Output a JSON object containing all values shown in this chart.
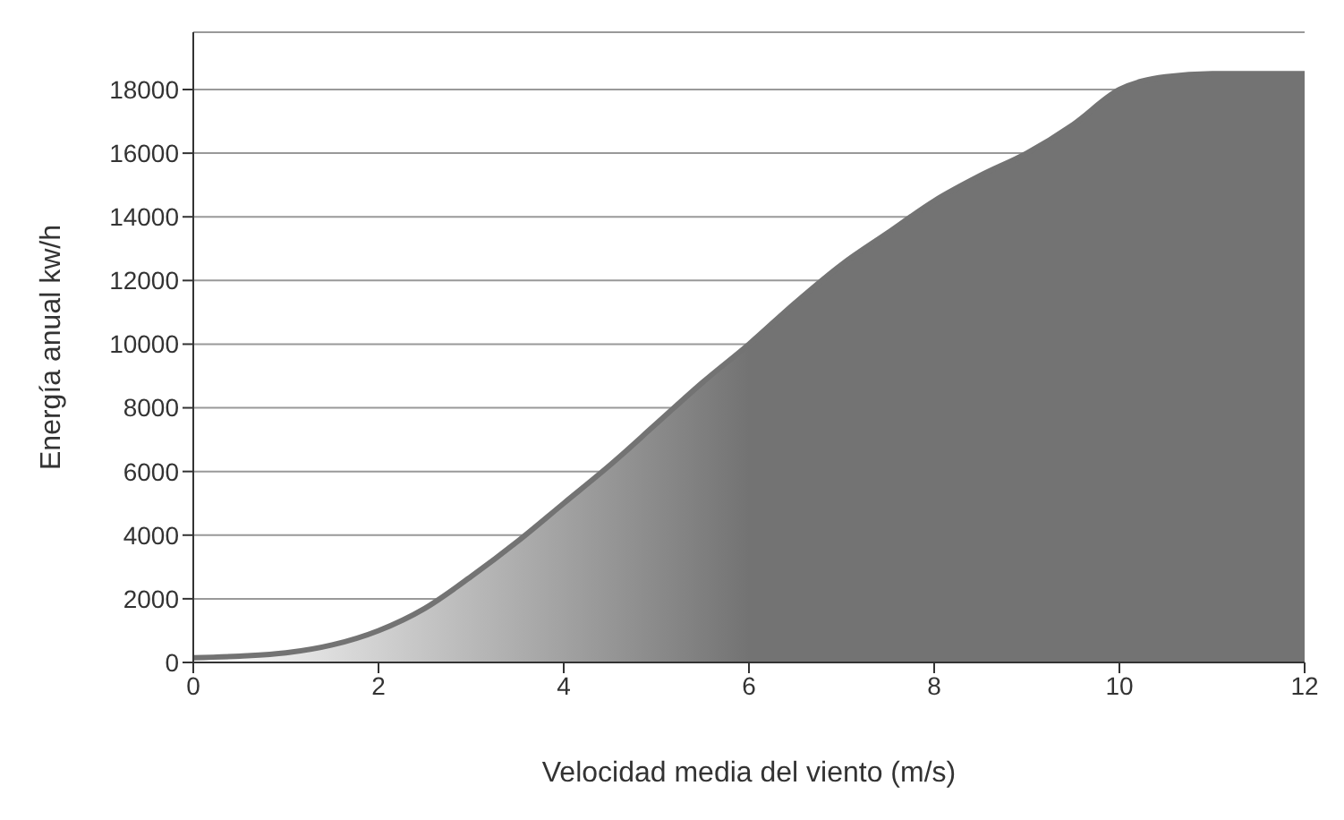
{
  "chart_data": {
    "type": "area",
    "xlabel": "Velocidad media del viento (m/s)",
    "ylabel": "Energía anual kw/h",
    "x": [
      0,
      0.5,
      1,
      1.5,
      2,
      2.5,
      3,
      3.5,
      4,
      4.5,
      5,
      5.5,
      6,
      6.5,
      7,
      7.5,
      8,
      8.5,
      9,
      9.5,
      10,
      10.5,
      11,
      11.5,
      12
    ],
    "series": [
      {
        "color": "#737373",
        "values": [
          150,
          200,
          300,
          550,
          1000,
          1700,
          2700,
          3800,
          5000,
          6200,
          7500,
          8800,
          10000,
          11300,
          12500,
          13500,
          14500,
          15300,
          16000,
          16900,
          18000,
          18400,
          18500,
          18500,
          18500
        ]
      }
    ],
    "xlim": [
      0,
      12
    ],
    "xticks": [
      0,
      2,
      4,
      6,
      8,
      10,
      12
    ],
    "ylim": [
      0,
      19800
    ],
    "yticks": [
      0,
      2000,
      4000,
      6000,
      8000,
      10000,
      12000,
      14000,
      16000,
      18000
    ],
    "grid": "y",
    "legend": false
  }
}
